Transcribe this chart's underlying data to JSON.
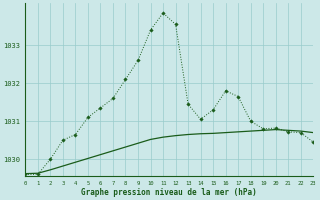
{
  "xlabel": "Graphe pression niveau de la mer (hPa)",
  "background_color": "#cce8e8",
  "grid_color": "#99cccc",
  "line_color": "#1a5c1a",
  "hours": [
    0,
    1,
    2,
    3,
    4,
    5,
    6,
    7,
    8,
    9,
    10,
    11,
    12,
    13,
    14,
    15,
    16,
    17,
    18,
    19,
    20,
    21,
    22,
    23
  ],
  "series_dotted": [
    1029.6,
    1029.6,
    1030.0,
    1030.5,
    1030.65,
    1031.1,
    1031.35,
    1031.6,
    1032.1,
    1032.6,
    1033.4,
    1033.85,
    1033.55,
    1031.45,
    1031.05,
    1031.3,
    1031.8,
    1031.65,
    1031.0,
    1030.8,
    1030.82,
    1030.72,
    1030.7,
    1030.45
  ],
  "series_solid": [
    1029.62,
    1029.63,
    1029.72,
    1029.82,
    1029.92,
    1030.02,
    1030.12,
    1030.22,
    1030.32,
    1030.42,
    1030.52,
    1030.58,
    1030.62,
    1030.65,
    1030.67,
    1030.68,
    1030.7,
    1030.72,
    1030.74,
    1030.76,
    1030.78,
    1030.76,
    1030.74,
    1030.7
  ],
  "ylim": [
    1029.55,
    1034.1
  ],
  "ytick_vals": [
    1030,
    1031,
    1032,
    1033
  ],
  "ytick_labels": [
    "1030",
    "1031",
    "1032",
    "1033"
  ],
  "xlim": [
    0,
    23
  ],
  "figsize": [
    3.2,
    2.0
  ],
  "dpi": 100
}
